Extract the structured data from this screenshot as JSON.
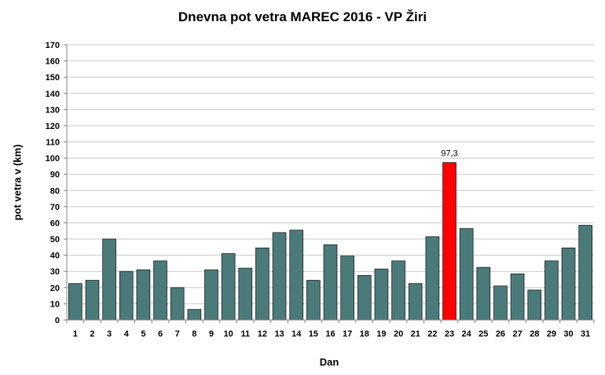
{
  "chart_data": {
    "type": "bar",
    "title": "Dnevna pot vetra MAREC 2016 - VP Žiri",
    "xlabel": "Dan",
    "ylabel": "pot vetra  v (km)",
    "categories": [
      "1",
      "2",
      "3",
      "4",
      "5",
      "6",
      "7",
      "8",
      "9",
      "10",
      "11",
      "12",
      "13",
      "14",
      "15",
      "16",
      "17",
      "18",
      "19",
      "20",
      "21",
      "22",
      "23",
      "24",
      "25",
      "26",
      "27",
      "28",
      "29",
      "30",
      "31"
    ],
    "values": [
      22.5,
      24.5,
      50,
      30,
      31,
      36.5,
      20,
      6.5,
      31,
      41,
      32,
      44.5,
      54,
      55.5,
      24.5,
      46.5,
      39.5,
      27.5,
      31.5,
      36.5,
      22.5,
      51.5,
      97.3,
      56.5,
      32.5,
      21,
      28.5,
      18.5,
      36.5,
      44.5,
      58.5
    ],
    "ylim": [
      0,
      170
    ],
    "yticks": [
      0,
      10,
      20,
      30,
      40,
      50,
      60,
      70,
      80,
      90,
      100,
      110,
      120,
      130,
      140,
      150,
      160,
      170
    ],
    "grid": true,
    "bar_color": "#4a7b7a",
    "highlight_color": "#ff0000",
    "highlight_category": "23",
    "highlight_label": "97,3"
  }
}
